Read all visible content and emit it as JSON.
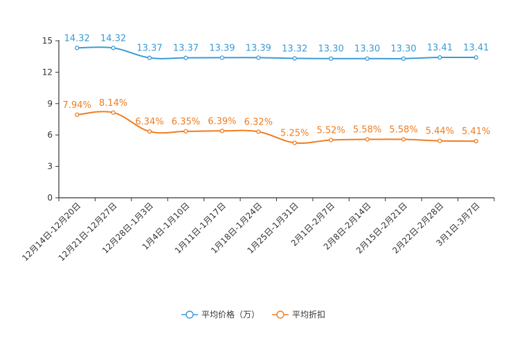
{
  "chart_data": {
    "type": "line",
    "title": "",
    "xlabel": "",
    "ylabel": "",
    "ylim": [
      0,
      15
    ],
    "yticks": [
      0,
      3,
      6,
      9,
      12,
      15
    ],
    "grid": false,
    "legend_position": "bottom-center",
    "categories": [
      "12月14日-12月20日",
      "12月21日-12月27日",
      "12月28日-1月3日",
      "1月4日-1月10日",
      "1月11日-1月17日",
      "1月18日-1月24日",
      "1月25日-1月31日",
      "2月1日-2月7日",
      "2月8日-2月14日",
      "2月15日-2月21日",
      "2月22日-2月28日",
      "3月1日-3月7日"
    ],
    "series": [
      {
        "name": "平均价格（万）",
        "color": "#3a9bd5",
        "values": [
          14.32,
          14.32,
          13.37,
          13.37,
          13.39,
          13.39,
          13.32,
          13.3,
          13.3,
          13.3,
          13.41,
          13.41
        ],
        "labels": [
          "14.32",
          "14.32",
          "13.37",
          "13.37",
          "13.39",
          "13.39",
          "13.32",
          "13.30",
          "13.30",
          "13.30",
          "13.41",
          "13.41"
        ]
      },
      {
        "name": "平均折扣",
        "color": "#f07c1e",
        "values": [
          7.94,
          8.14,
          6.34,
          6.35,
          6.39,
          6.32,
          5.25,
          5.52,
          5.58,
          5.58,
          5.44,
          5.41
        ],
        "labels": [
          "7.94%",
          "8.14%",
          "6.34%",
          "6.35%",
          "6.39%",
          "6.32%",
          "5.25%",
          "5.52%",
          "5.58%",
          "5.58%",
          "5.44%",
          "5.41%"
        ]
      }
    ]
  }
}
